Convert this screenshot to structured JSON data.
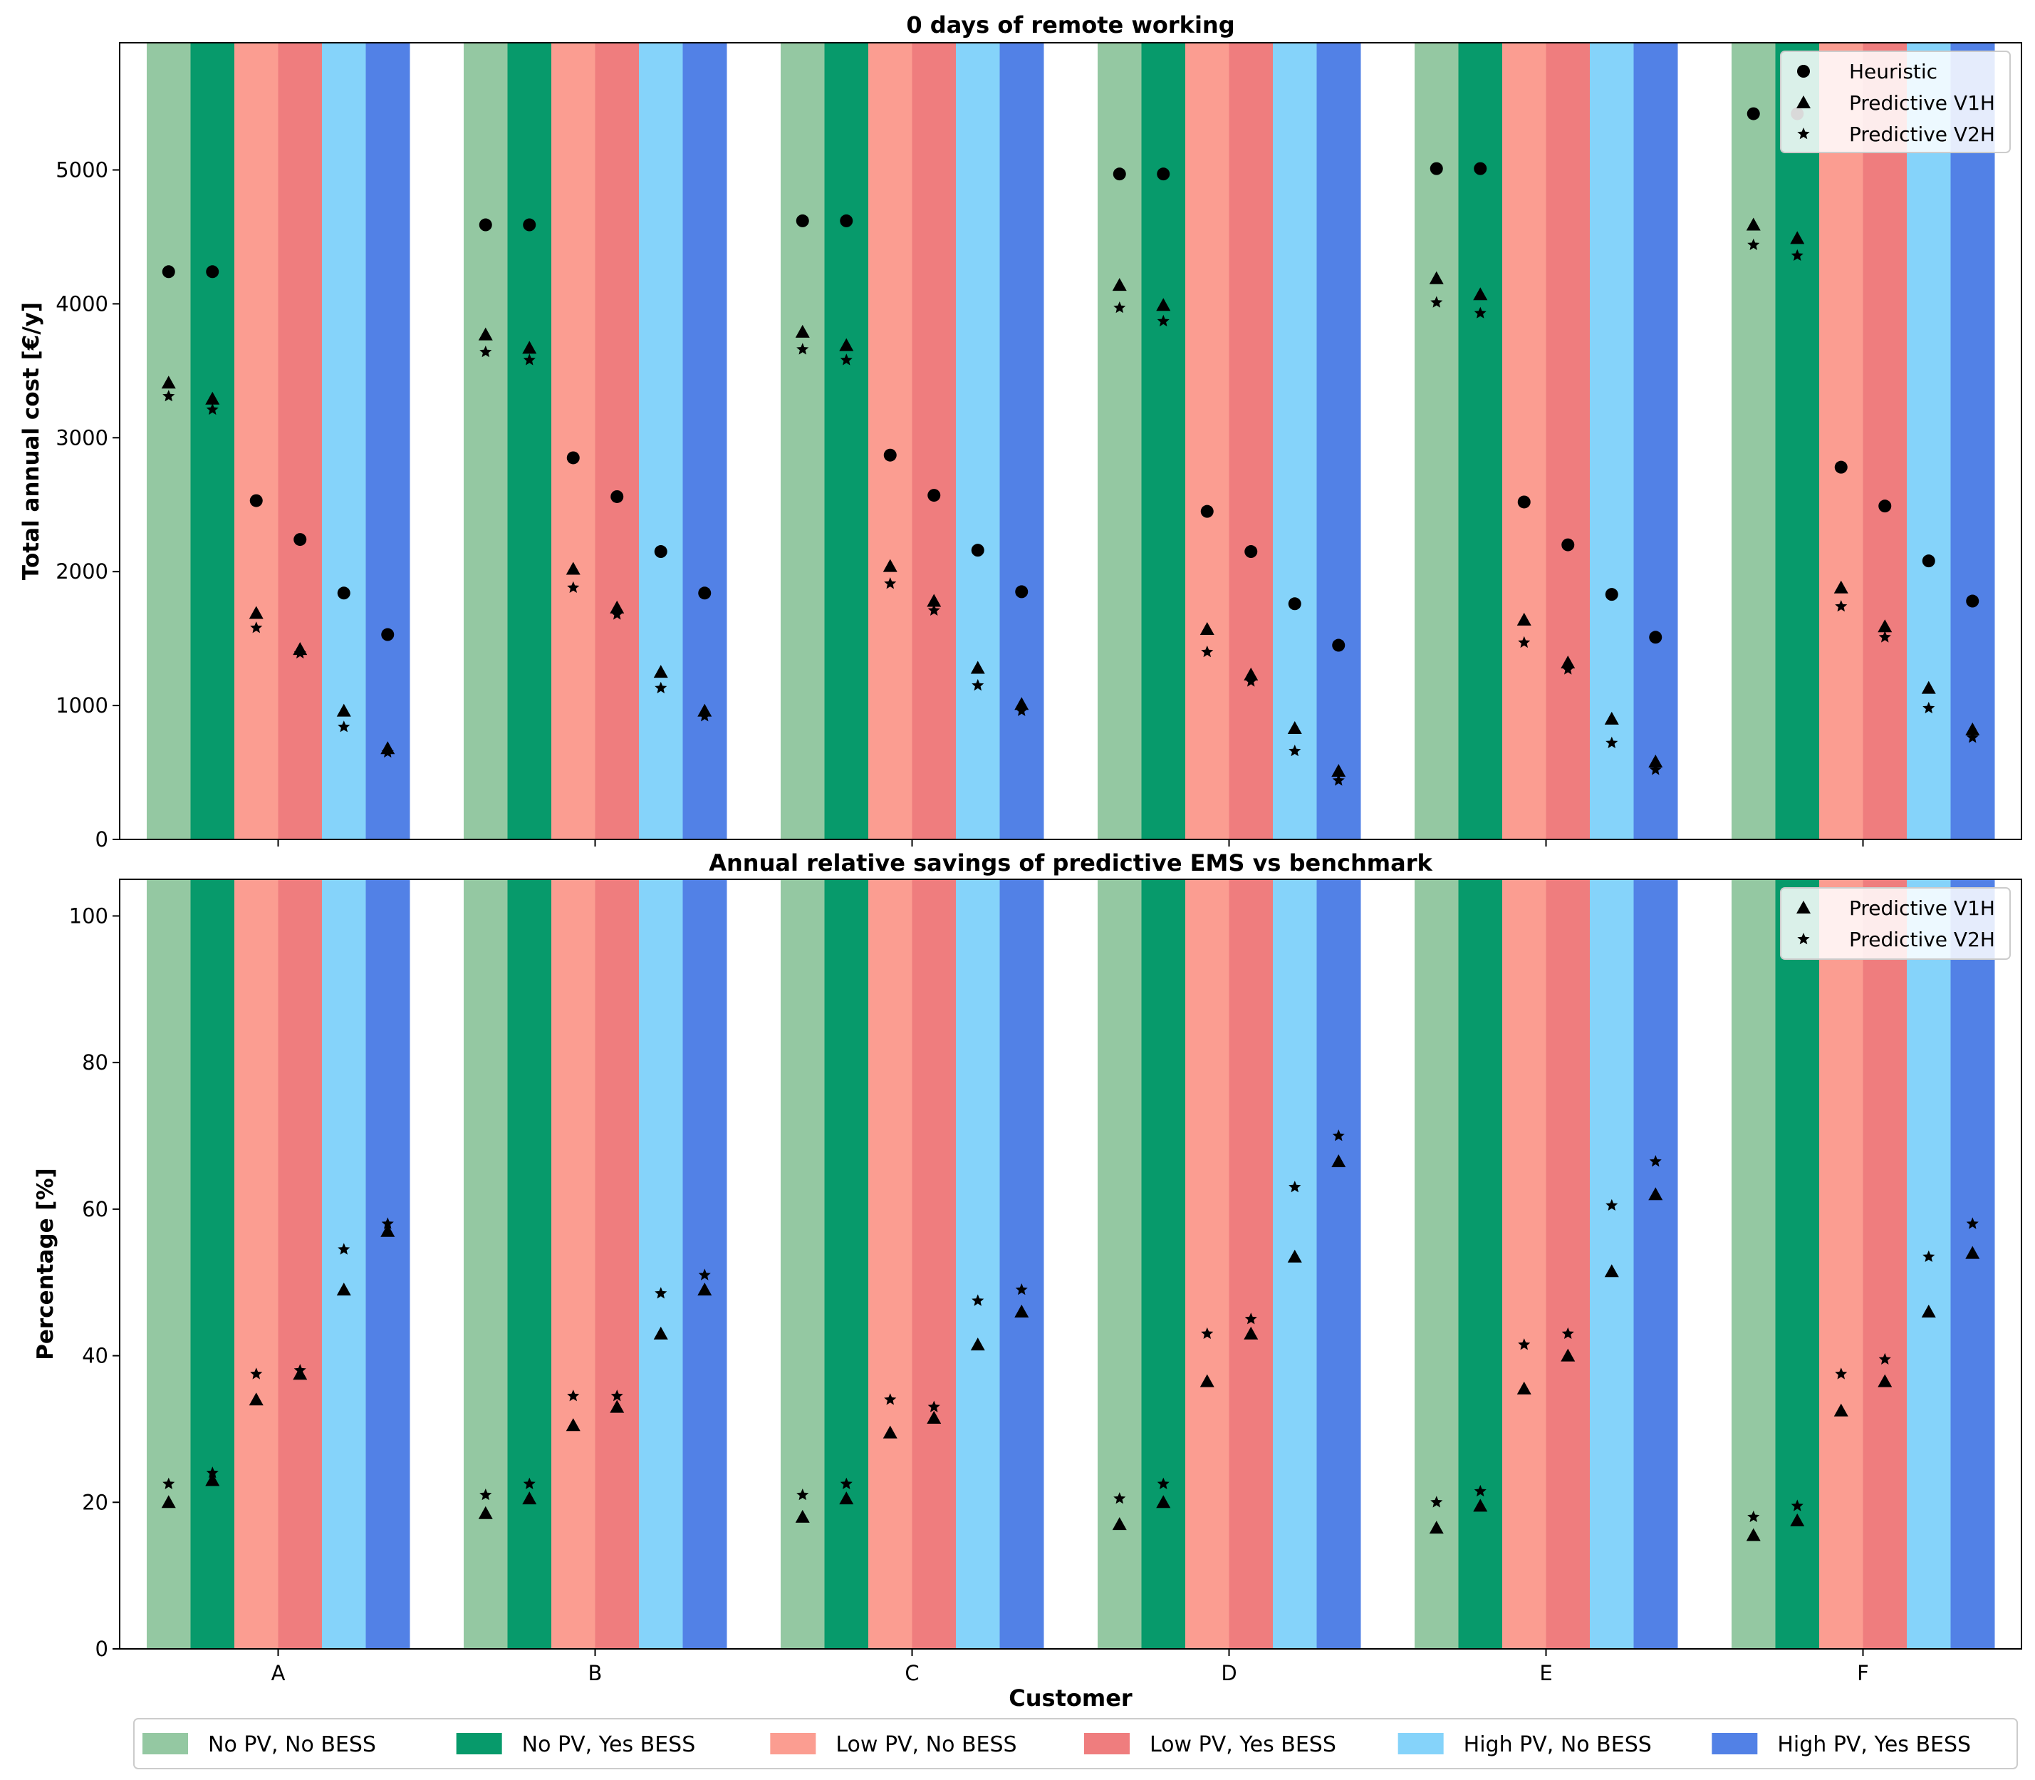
{
  "chart_data": [
    {
      "type": "bar",
      "title": "0 days of remote working",
      "xlabel": "",
      "ylabel": "Total annual cost [€/y]",
      "categories": [
        "A",
        "B",
        "C",
        "D",
        "E",
        "F"
      ],
      "ylim": [
        0,
        5950
      ],
      "yticks": [
        0,
        1000,
        2000,
        3000,
        4000,
        5000
      ],
      "bars": "full-height background bands per configuration",
      "series": [
        {
          "name": "Heuristic",
          "marker": "circle",
          "values": [
            [
              4240,
              4240,
              2530,
              2240,
              1840,
              1530
            ],
            [
              4590,
              4590,
              2850,
              2560,
              2150,
              1840
            ],
            [
              4620,
              4620,
              2870,
              2570,
              2160,
              1850
            ],
            [
              4970,
              4970,
              2450,
              2150,
              1760,
              1450
            ],
            [
              5010,
              5010,
              2520,
              2200,
              1830,
              1510
            ],
            [
              5420,
              5420,
              2780,
              2490,
              2080,
              1780
            ]
          ]
        },
        {
          "name": "Predictive V1H",
          "marker": "triangle",
          "values": [
            [
              3410,
              3290,
              1690,
              1420,
              960,
              680
            ],
            [
              3770,
              3670,
              2020,
              1730,
              1250,
              960
            ],
            [
              3790,
              3690,
              2040,
              1780,
              1280,
              1010
            ],
            [
              4140,
              3990,
              1570,
              1230,
              830,
              510
            ],
            [
              4190,
              4070,
              1640,
              1320,
              900,
              580
            ],
            [
              4590,
              4490,
              1880,
              1590,
              1130,
              820
            ]
          ]
        },
        {
          "name": "Predictive V2H",
          "marker": "star",
          "values": [
            [
              3310,
              3210,
              1580,
              1390,
              840,
              650
            ],
            [
              3640,
              3580,
              1880,
              1680,
              1130,
              920
            ],
            [
              3660,
              3580,
              1910,
              1710,
              1150,
              960
            ],
            [
              3970,
              3870,
              1400,
              1180,
              660,
              440
            ],
            [
              4010,
              3930,
              1470,
              1270,
              720,
              520
            ],
            [
              4440,
              4360,
              1740,
              1510,
              980,
              760
            ]
          ]
        }
      ],
      "legend": {
        "position": "top-right",
        "entries": [
          "Heuristic",
          "Predictive V1H",
          "Predictive V2H"
        ]
      },
      "grid": false
    },
    {
      "type": "bar",
      "title": "Annual relative savings of predictive EMS vs benchmark",
      "xlabel": "Customer",
      "ylabel": "Percentage [%]",
      "categories": [
        "A",
        "B",
        "C",
        "D",
        "E",
        "F"
      ],
      "ylim": [
        0,
        105
      ],
      "yticks": [
        0,
        20,
        40,
        60,
        80,
        100
      ],
      "bars": "full-height background bands per configuration",
      "series": [
        {
          "name": "Predictive V1H",
          "marker": "triangle",
          "values": [
            [
              20.0,
              23.0,
              34.0,
              37.5,
              49.0,
              57.0
            ],
            [
              18.5,
              20.5,
              30.5,
              33.0,
              43.0,
              49.0
            ],
            [
              18.0,
              20.5,
              29.5,
              31.5,
              41.5,
              46.0
            ],
            [
              17.0,
              20.0,
              36.5,
              43.0,
              53.5,
              66.5
            ],
            [
              16.5,
              19.5,
              35.5,
              40.0,
              51.5,
              62.0
            ],
            [
              15.5,
              17.5,
              32.5,
              36.5,
              46.0,
              54.0
            ]
          ]
        },
        {
          "name": "Predictive V2H",
          "marker": "star",
          "values": [
            [
              22.5,
              24.0,
              37.5,
              38.0,
              54.5,
              58.0
            ],
            [
              21.0,
              22.5,
              34.5,
              34.5,
              48.5,
              51.0
            ],
            [
              21.0,
              22.5,
              34.0,
              33.0,
              47.5,
              49.0
            ],
            [
              20.5,
              22.5,
              43.0,
              45.0,
              63.0,
              70.0
            ],
            [
              20.0,
              21.5,
              41.5,
              43.0,
              60.5,
              66.5
            ],
            [
              18.0,
              19.5,
              37.5,
              39.5,
              53.5,
              58.0
            ]
          ]
        }
      ],
      "legend": {
        "position": "top-right",
        "entries": [
          "Predictive V1H",
          "Predictive V2H"
        ]
      },
      "grid": false
    }
  ],
  "configurations": [
    {
      "label": "No PV, No BESS",
      "color": "#94c8a2"
    },
    {
      "label": "No PV, Yes BESS",
      "color": "#079a6b"
    },
    {
      "label": "Low PV, No BESS",
      "color": "#fb9d91"
    },
    {
      "label": "Low PV, Yes BESS",
      "color": "#ef7d7e"
    },
    {
      "label": "High PV, No BESS",
      "color": "#85d3fa"
    },
    {
      "label": "High PV, Yes BESS",
      "color": "#5281e6"
    }
  ]
}
